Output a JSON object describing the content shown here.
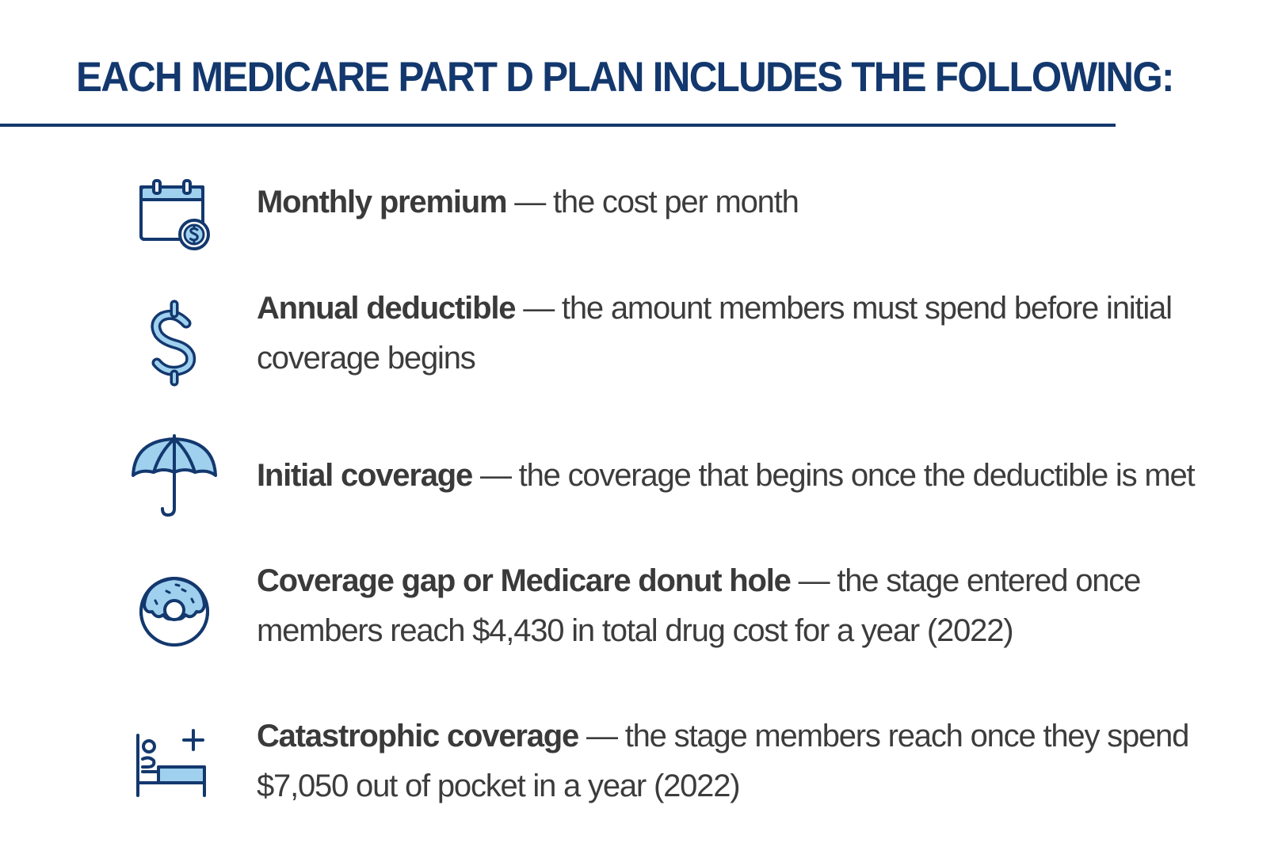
{
  "heading": "EACH MEDICARE PART D PLAN INCLUDES THE FOLLOWING:",
  "colors": {
    "heading": "#13386e",
    "icon_stroke": "#13386e",
    "icon_fill": "#9fd0ee",
    "body_text": "#3c3c3c"
  },
  "items": [
    {
      "icon": "calendar-dollar-icon",
      "term": "Monthly premium",
      "separator": " — ",
      "description": "the cost per month"
    },
    {
      "icon": "dollar-sign-icon",
      "term": "Annual deductible",
      "separator": " — ",
      "description": "the amount members must spend before initial coverage begins"
    },
    {
      "icon": "umbrella-icon",
      "term": "Initial coverage",
      "separator": " — ",
      "description": "the coverage that begins once the deductible is met"
    },
    {
      "icon": "donut-icon",
      "term": "Coverage gap or Medicare donut hole",
      "separator": " — ",
      "description": "the stage entered once members reach $4,430 in total drug cost for a year (2022)"
    },
    {
      "icon": "hospital-bed-icon",
      "term": "Catastrophic coverage",
      "separator": " — ",
      "description": "the stage members reach once they spend $7,050 out of pocket in a year (2022)"
    }
  ]
}
